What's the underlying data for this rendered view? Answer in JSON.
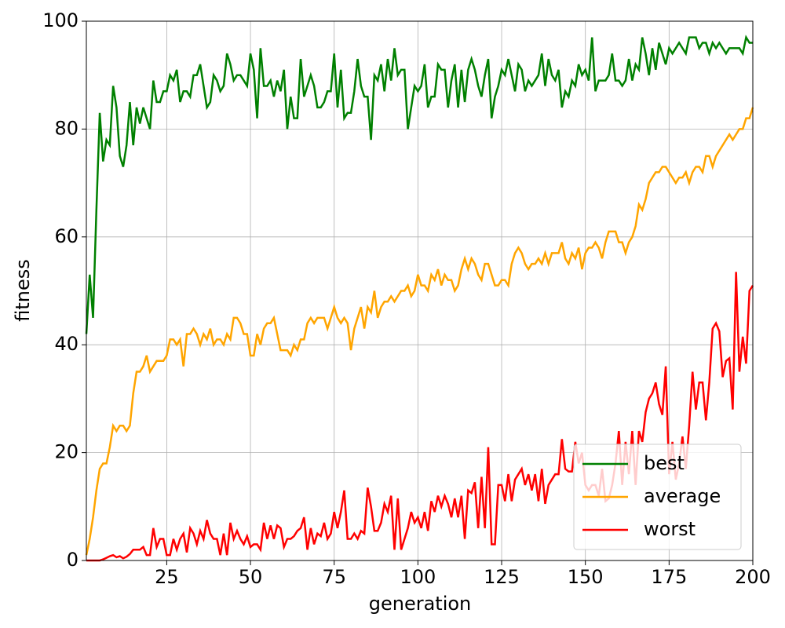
{
  "chart_data": {
    "type": "line",
    "xlabel": "generation",
    "ylabel": "fitness",
    "x": [
      1,
      2,
      3,
      4,
      5,
      6,
      7,
      8,
      9,
      10,
      11,
      12,
      13,
      14,
      15,
      16,
      17,
      18,
      19,
      20,
      21,
      22,
      23,
      24,
      25,
      26,
      27,
      28,
      29,
      30,
      31,
      32,
      33,
      34,
      35,
      36,
      37,
      38,
      39,
      40,
      41,
      42,
      43,
      44,
      45,
      46,
      47,
      48,
      49,
      50,
      51,
      52,
      53,
      54,
      55,
      56,
      57,
      58,
      59,
      60,
      61,
      62,
      63,
      64,
      65,
      66,
      67,
      68,
      69,
      70,
      71,
      72,
      73,
      74,
      75,
      76,
      77,
      78,
      79,
      80,
      81,
      82,
      83,
      84,
      85,
      86,
      87,
      88,
      89,
      90,
      91,
      92,
      93,
      94,
      95,
      96,
      97,
      98,
      99,
      100,
      101,
      102,
      103,
      104,
      105,
      106,
      107,
      108,
      109,
      110,
      111,
      112,
      113,
      114,
      115,
      116,
      117,
      118,
      119,
      120,
      121,
      122,
      123,
      124,
      125,
      126,
      127,
      128,
      129,
      130,
      131,
      132,
      133,
      134,
      135,
      136,
      137,
      138,
      139,
      140,
      141,
      142,
      143,
      144,
      145,
      146,
      147,
      148,
      149,
      150,
      151,
      152,
      153,
      154,
      155,
      156,
      157,
      158,
      159,
      160,
      161,
      162,
      163,
      164,
      165,
      166,
      167,
      168,
      169,
      170,
      171,
      172,
      173,
      174,
      175,
      176,
      177,
      178,
      179,
      180,
      181,
      182,
      183,
      184,
      185,
      186,
      187,
      188,
      189,
      190,
      191,
      192,
      193,
      194,
      195,
      196,
      197,
      198,
      199,
      200
    ],
    "series": [
      {
        "name": "best",
        "color": "#008000",
        "values": [
          42,
          53,
          45,
          65,
          83,
          74,
          78,
          77,
          88,
          84,
          75,
          73,
          77,
          85,
          77,
          84,
          81,
          84,
          82,
          80,
          89,
          85,
          85,
          87,
          87,
          90,
          89,
          91,
          85,
          87,
          87,
          86,
          90,
          90,
          92,
          88,
          84,
          85,
          90,
          89,
          87,
          88,
          94,
          92,
          89,
          90,
          90,
          89,
          88,
          94,
          91,
          82,
          95,
          88,
          88,
          89,
          86,
          89,
          87,
          91,
          80,
          86,
          82,
          82,
          93,
          86,
          88,
          90,
          88,
          84,
          84,
          85,
          87,
          87,
          94,
          84,
          91,
          82,
          83,
          83,
          87,
          93,
          88,
          86,
          86,
          78,
          90,
          89,
          92,
          87,
          93,
          89,
          95,
          90,
          91,
          91,
          80,
          84,
          88,
          87,
          88,
          92,
          84,
          86,
          86,
          92,
          91,
          91,
          84,
          89,
          92,
          84,
          91,
          85,
          91,
          93,
          91,
          88,
          86,
          90,
          93,
          82,
          86,
          88,
          91,
          90,
          93,
          90,
          87,
          92,
          91,
          87,
          89,
          88,
          89,
          90,
          94,
          88,
          93,
          90,
          89,
          91,
          84,
          87,
          86,
          89,
          88,
          92,
          90,
          91,
          89,
          97,
          87,
          89,
          89,
          89,
          90,
          94,
          89,
          89,
          88,
          89,
          93,
          89,
          92,
          91,
          97,
          94,
          90,
          95,
          91,
          96,
          94,
          92,
          95,
          94,
          95,
          96,
          95,
          94,
          97,
          97,
          97,
          95,
          96,
          96,
          94,
          96,
          95,
          96,
          95,
          94,
          95,
          95,
          95,
          95,
          94,
          97,
          96,
          96
        ]
      },
      {
        "name": "average",
        "color": "#ffa500",
        "values": [
          1,
          4,
          8,
          13,
          17,
          18,
          18,
          21,
          25,
          24,
          25,
          25,
          24,
          25,
          31,
          35,
          35,
          36,
          38,
          35,
          36,
          37,
          37,
          37,
          38,
          41,
          41,
          40,
          41,
          36,
          42,
          42,
          43,
          42,
          40,
          42,
          41,
          43,
          40,
          41,
          41,
          40,
          42,
          41,
          45,
          45,
          44,
          42,
          42,
          38,
          38,
          42,
          40,
          43,
          44,
          44,
          45,
          42,
          39,
          39,
          39,
          38,
          40,
          39,
          41,
          41,
          44,
          45,
          44,
          45,
          45,
          45,
          43,
          45,
          47,
          45,
          44,
          45,
          44,
          39,
          43,
          45,
          47,
          43,
          47,
          46,
          50,
          45,
          47,
          48,
          48,
          49,
          48,
          49,
          50,
          50,
          51,
          49,
          50,
          53,
          51,
          51,
          50,
          53,
          52,
          54,
          51,
          53,
          52,
          52,
          50,
          51,
          54,
          56,
          54,
          56,
          55,
          53,
          52,
          55,
          55,
          53,
          51,
          51,
          52,
          52,
          51,
          55,
          57,
          58,
          57,
          55,
          54,
          55,
          55,
          56,
          55,
          57,
          55,
          57,
          57,
          57,
          59,
          56,
          55,
          57,
          56,
          58,
          54,
          57,
          58,
          58,
          59,
          58,
          56,
          59,
          61,
          61,
          61,
          59,
          59,
          57,
          59,
          60,
          62,
          66,
          65,
          67,
          70,
          71,
          72,
          72,
          73,
          73,
          72,
          71,
          70,
          71,
          71,
          72,
          70,
          72,
          73,
          73,
          72,
          75,
          75,
          73,
          75,
          76,
          77,
          78,
          79,
          78,
          79,
          80,
          80,
          82,
          82,
          84
        ]
      },
      {
        "name": "worst",
        "color": "#ff0000",
        "values": [
          0,
          0,
          0,
          0,
          0,
          0.2,
          0.5,
          0.8,
          1,
          0.6,
          0.8,
          0.4,
          0.7,
          1.2,
          2,
          2,
          2,
          2.5,
          1,
          1,
          6,
          2.5,
          4,
          4,
          1,
          1,
          4,
          2,
          4,
          5,
          1.5,
          6,
          5,
          3,
          5.5,
          4,
          7.5,
          5,
          4,
          4,
          1,
          5,
          1,
          7,
          4,
          5.5,
          4,
          3,
          4.5,
          2.5,
          3,
          3,
          2,
          7,
          4,
          6.5,
          4,
          6.5,
          6,
          2.5,
          4,
          4,
          4.5,
          5.5,
          6,
          8,
          2,
          6,
          3,
          5,
          4.5,
          7,
          4,
          5,
          9,
          6,
          9,
          13,
          4,
          4,
          5,
          4,
          5.5,
          5,
          13.5,
          10,
          5.5,
          5.5,
          7,
          10.5,
          9,
          12,
          2,
          11.5,
          2,
          4,
          6,
          9,
          7,
          8,
          6,
          9,
          5.5,
          11,
          9,
          12,
          10,
          12,
          10.5,
          8,
          11.5,
          8,
          12,
          4,
          13,
          12.5,
          14.5,
          6,
          15.5,
          6,
          21,
          3,
          3,
          14,
          14,
          11,
          16,
          11,
          15,
          16,
          17,
          14,
          16,
          13,
          16,
          11,
          17,
          10.5,
          14,
          15,
          16,
          16,
          22.5,
          17,
          16.5,
          16.5,
          22,
          18,
          20,
          14,
          13,
          14,
          14,
          12,
          17,
          11,
          11.5,
          14,
          18,
          24,
          14,
          22,
          16,
          24,
          14,
          24,
          22,
          27.5,
          30,
          31,
          33,
          29,
          27,
          36,
          16,
          22,
          15,
          18,
          23,
          17,
          25,
          35,
          28,
          33,
          33,
          26,
          33,
          43,
          44,
          42.5,
          34,
          37,
          37.5,
          28,
          53.5,
          35,
          41.5,
          36.5,
          50,
          51
        ]
      }
    ],
    "xlim": [
      1,
      200
    ],
    "xticks": [
      25,
      50,
      75,
      100,
      125,
      150,
      175,
      200
    ],
    "ylim": [
      0,
      100
    ],
    "yticks": [
      0,
      20,
      40,
      60,
      80,
      100
    ],
    "grid": true,
    "legend": "lower right"
  }
}
